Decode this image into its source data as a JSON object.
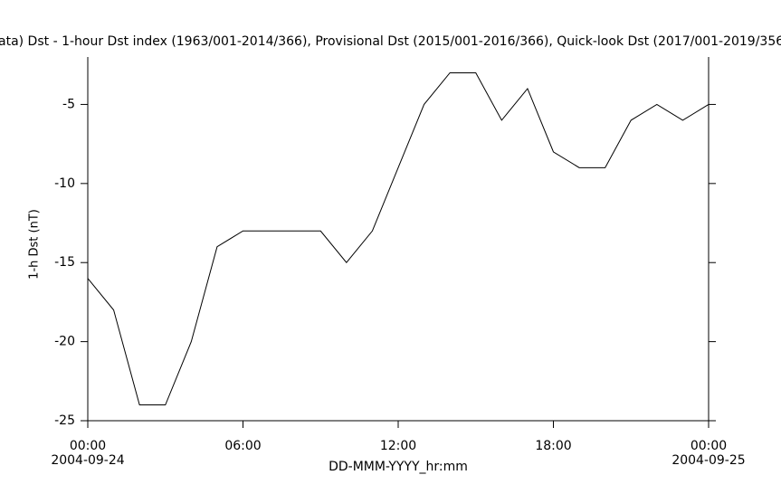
{
  "chart_data": {
    "type": "line",
    "title": "ata)  Dst - 1-hour Dst index (1963/001-2014/366), Provisional Dst (2015/001-2016/366), Quick-look Dst (2017/001-2019/356",
    "x_label": "DD-MMM-YYYY_hr:mm",
    "y_label": "1-h Dst (nT)",
    "x": [
      0,
      1,
      2,
      3,
      4,
      5,
      6,
      7,
      8,
      9,
      10,
      11,
      12,
      13,
      14,
      15,
      16,
      17,
      18,
      19,
      20,
      21,
      22,
      23,
      24
    ],
    "series": [
      {
        "color": "#000000",
        "values": [
          -16,
          -18,
          -24,
          -24,
          -20,
          -14,
          -13,
          -13,
          -13,
          -13,
          -15,
          -13,
          -9,
          -5,
          -3,
          -3,
          -6,
          -4,
          -8,
          -9,
          -9,
          -6,
          -5,
          -6,
          -5
        ]
      }
    ],
    "xlim": [
      0,
      24
    ],
    "ylim": [
      -25,
      -2
    ],
    "xticks": [
      {
        "value": 0,
        "label": "00:00"
      },
      {
        "value": 6,
        "label": "06:00"
      },
      {
        "value": 12,
        "label": "12:00"
      },
      {
        "value": 18,
        "label": "18:00"
      },
      {
        "value": 24,
        "label": "00:00"
      }
    ],
    "xtick_dates": [
      {
        "value": 0,
        "label": "2004-09-24"
      },
      {
        "value": 24,
        "label": "2004-09-25"
      }
    ],
    "yticks": [
      -5,
      -10,
      -15,
      -20,
      -25
    ]
  }
}
